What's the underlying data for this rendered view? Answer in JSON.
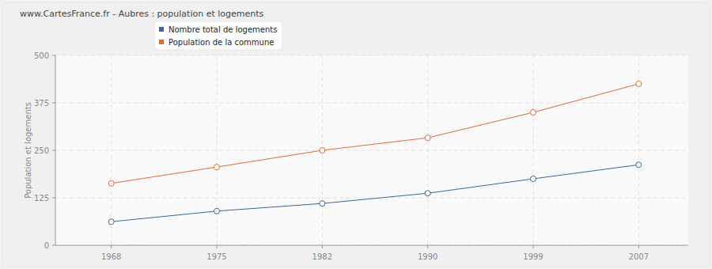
{
  "chart_data": {
    "type": "line",
    "title": "www.CartesFrance.fr - Aubres : population et logements",
    "y_label": "Population et logements",
    "categories": [
      "1968",
      "1975",
      "1982",
      "1990",
      "1999",
      "2007"
    ],
    "series": [
      {
        "name": "Nombre total de logements",
        "color": "#3b6796",
        "marker": "circle",
        "values": [
          62,
          90,
          110,
          137,
          175,
          212
        ]
      },
      {
        "name": "Population de la commune",
        "color": "#dd6b3d",
        "marker": "circle",
        "values": [
          163,
          206,
          250,
          283,
          350,
          425
        ]
      }
    ],
    "ylim": [
      0,
      500
    ],
    "yticks": [
      0,
      125,
      250,
      375,
      500
    ],
    "grid": true,
    "legend": "top"
  }
}
